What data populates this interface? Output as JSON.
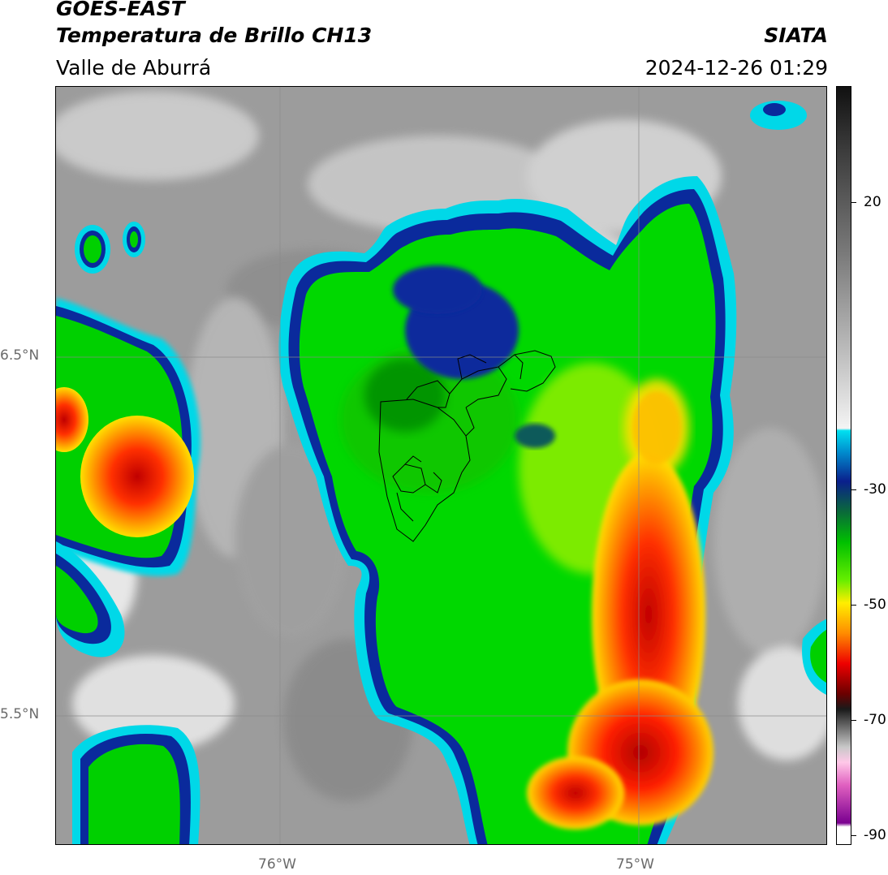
{
  "header": {
    "title_line1": "GOES-EAST",
    "title_line2": "Temperatura de Brillo CH13",
    "brand": "SIATA",
    "subtitle": "Valle de Aburrá",
    "datetime": "2024-12-26 01:29"
  },
  "map": {
    "lat_labels": [
      "6.5°N",
      "5.5°N"
    ],
    "lon_labels": [
      "76°W",
      "75°W"
    ],
    "gridlines": true
  },
  "colorbar": {
    "tick_labels": [
      "20",
      "-30",
      "-50",
      "-70",
      "-90"
    ],
    "palette": {
      "warm_top": "#111111",
      "gray": "#9a9a9a",
      "white": "#f2f2f2",
      "cyan": "#00d8e8",
      "navy": "#0a1f8c",
      "green": "#00e000",
      "yellow": "#ffee00",
      "orange": "#ff8c00",
      "red": "#e00000",
      "dark_red": "#5a0000",
      "magenta": "#e060c0",
      "purple": "#7a0090"
    }
  }
}
